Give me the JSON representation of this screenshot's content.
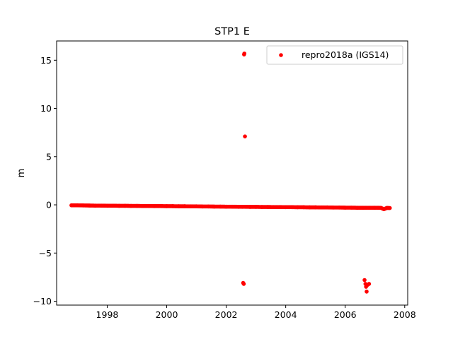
{
  "chart_data": {
    "type": "scatter",
    "title": "STP1 E",
    "xlabel": "",
    "ylabel": "m",
    "xlim": [
      1996.3,
      2008.1
    ],
    "ylim": [
      -10.4,
      17.0
    ],
    "xticks": [
      1998,
      2000,
      2002,
      2004,
      2006,
      2008
    ],
    "yticks": [
      -10,
      -5,
      0,
      5,
      10,
      15
    ],
    "ytick_labels": [
      "−10",
      "−5",
      "0",
      "5",
      "10",
      "15"
    ],
    "grid": false,
    "legend_position": "top-right",
    "marker_color": "#ff0000",
    "series": [
      {
        "name": "repro2018a (IGS14)",
        "x": [
          1996.8,
          1997.0,
          1997.2,
          1997.4,
          1997.6,
          1997.8,
          1998.0,
          1998.2,
          1998.4,
          1998.6,
          1998.8,
          1999.0,
          1999.2,
          1999.4,
          1999.6,
          1999.8,
          2000.0,
          2000.2,
          2000.4,
          2000.6,
          2000.8,
          2001.0,
          2001.2,
          2001.4,
          2001.6,
          2001.8,
          2002.0,
          2002.2,
          2002.4,
          2002.55,
          2002.6,
          2002.61,
          2002.63,
          2002.57,
          2002.59,
          2002.8,
          2003.0,
          2003.2,
          2003.4,
          2003.6,
          2003.8,
          2004.0,
          2004.2,
          2004.4,
          2004.6,
          2004.8,
          2005.0,
          2005.2,
          2005.4,
          2005.6,
          2005.8,
          2006.0,
          2006.2,
          2006.4,
          2006.6,
          2006.65,
          2006.68,
          2006.7,
          2006.72,
          2006.75,
          2006.8,
          2007.0,
          2007.2,
          2007.3,
          2007.4,
          2007.5
        ],
        "y": [
          -0.05,
          -0.05,
          -0.06,
          -0.07,
          -0.08,
          -0.08,
          -0.09,
          -0.09,
          -0.1,
          -0.1,
          -0.11,
          -0.11,
          -0.12,
          -0.12,
          -0.13,
          -0.13,
          -0.14,
          -0.14,
          -0.15,
          -0.15,
          -0.16,
          -0.16,
          -0.17,
          -0.17,
          -0.18,
          -0.18,
          -0.19,
          -0.19,
          -0.2,
          -0.2,
          15.6,
          15.7,
          7.1,
          -8.1,
          -8.2,
          -0.21,
          -0.21,
          -0.22,
          -0.22,
          -0.23,
          -0.23,
          -0.24,
          -0.24,
          -0.25,
          -0.25,
          -0.26,
          -0.26,
          -0.27,
          -0.27,
          -0.28,
          -0.28,
          -0.29,
          -0.29,
          -0.3,
          -0.3,
          -7.8,
          -8.2,
          -8.5,
          -9.0,
          -8.3,
          -8.2,
          -0.3,
          -0.31,
          -0.45,
          -0.32,
          -0.33
        ]
      }
    ]
  }
}
